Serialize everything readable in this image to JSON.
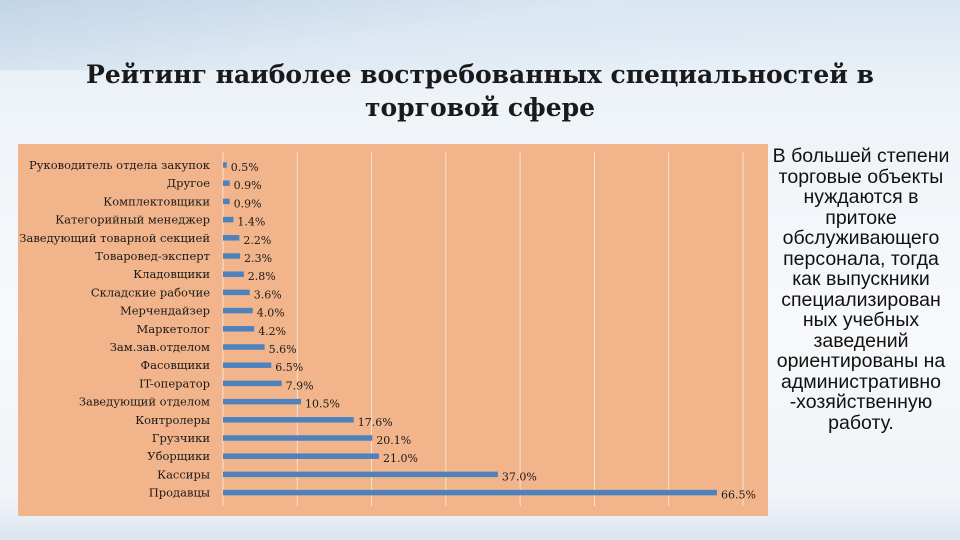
{
  "slide": {
    "title_line1": "Рейтинг наиболее востребованных специальностей в",
    "title_line2": "торговой сфере",
    "side_text": "В большей степени торговые объекты нуждаются в притоке обслуживающего персонала, тогда как выпускники специализирован ных учебных заведений ориентированы на административно -хозяйственную работу."
  },
  "colors": {
    "plot_background": "#f2b48a",
    "bar": "#4f81bd",
    "gridline": "#ffffff"
  },
  "chart_data": {
    "type": "bar",
    "orientation": "horizontal",
    "categories": [
      "Руководитель отдела закупок",
      "Другое",
      "Комплектовщики",
      "Категорийный менеджер",
      "Заведующий товарной секцией",
      "Товаровед-эксперт",
      "Кладовщики",
      "Складские рабочие",
      "Мерчендайзер",
      "Маркетолог",
      "Зам.зав.отделом",
      "Фасовщики",
      "IT-оператор",
      "Заведующий отделом",
      "Контролеры",
      "Грузчики",
      "Уборщики",
      "Кассиры",
      "Продавцы"
    ],
    "values": [
      0.5,
      0.9,
      0.9,
      1.4,
      2.2,
      2.3,
      2.8,
      3.6,
      4.0,
      4.2,
      5.6,
      6.5,
      7.9,
      10.5,
      17.6,
      20.1,
      21.0,
      37.0,
      66.5
    ],
    "data_labels": [
      "0.5%",
      "0.9%",
      "0.9%",
      "1.4%",
      "2.2%",
      "2.3%",
      "2.8%",
      "3.6%",
      "4.0%",
      "4.2%",
      "5.6%",
      "6.5%",
      "7.9%",
      "10.5%",
      "17.6%",
      "20.1%",
      "21.0%",
      "37.0%",
      "66.5%"
    ],
    "xlim": [
      0,
      70
    ],
    "grid": true,
    "legend": "none"
  }
}
